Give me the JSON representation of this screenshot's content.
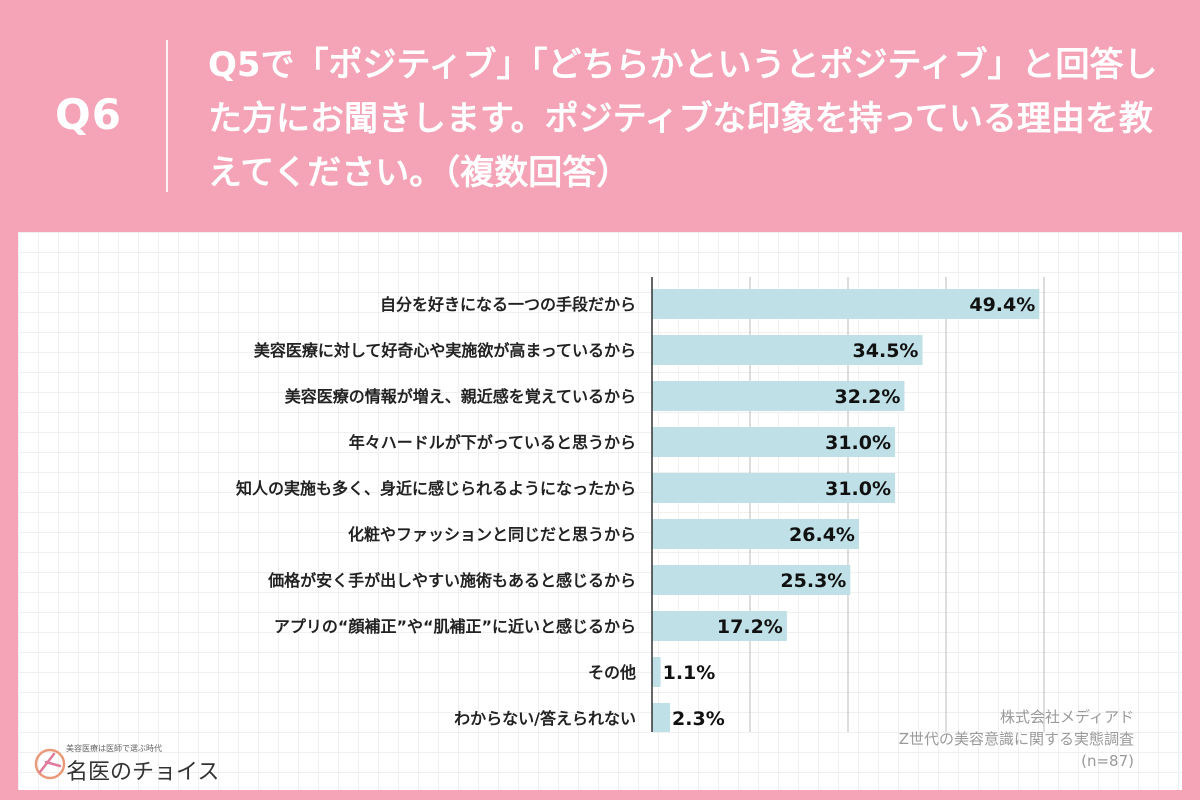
{
  "header": {
    "question_label": "Q6",
    "question_text": "Q5で「ポジティブ」「どちらかというとポジティブ」と回答した方にお聞きします。ポジティブな印象を持っている理由を教えてください。（複数回答）"
  },
  "colors": {
    "background": "#f5a3b6",
    "bar": "#bfe0e6",
    "axis": "#333333",
    "grid": "#bbbbbb"
  },
  "chart_data": {
    "type": "bar",
    "orientation": "horizontal",
    "categories": [
      "自分を好きになる一つの手段だから",
      "美容医療に対して好奇心や実施欲が高まっているから",
      "美容医療の情報が増え、親近感を覚えているから",
      "年々ハードルが下がっていると思うから",
      "知人の実施も多く、身近に感じられるようになったから",
      "化粧やファッションと同じだと思うから",
      "価格が安く手が出しやすい施術もあると感じるから",
      "アプリの“顔補正”や“肌補正”に近いと感じるから",
      "その他",
      "わからない/答えられない"
    ],
    "values": [
      49.4,
      34.5,
      32.2,
      31.0,
      31.0,
      26.4,
      25.3,
      17.2,
      1.1,
      2.3
    ],
    "value_labels": [
      "49.4%",
      "34.5%",
      "32.2%",
      "31.0%",
      "31.0%",
      "26.4%",
      "25.3%",
      "17.2%",
      "1.1%",
      "2.3%"
    ],
    "xlim": [
      0,
      50
    ],
    "grid": true,
    "gridlines_x": [
      12.5,
      25,
      37.5,
      50
    ]
  },
  "source": {
    "company": "株式会社メディアド",
    "survey": "Z世代の美容意識に関する実態調査",
    "sample": "(n=87)"
  },
  "logo": {
    "tagline": "美容医療は医師で選ぶ時代",
    "name": "名医のチョイス"
  }
}
